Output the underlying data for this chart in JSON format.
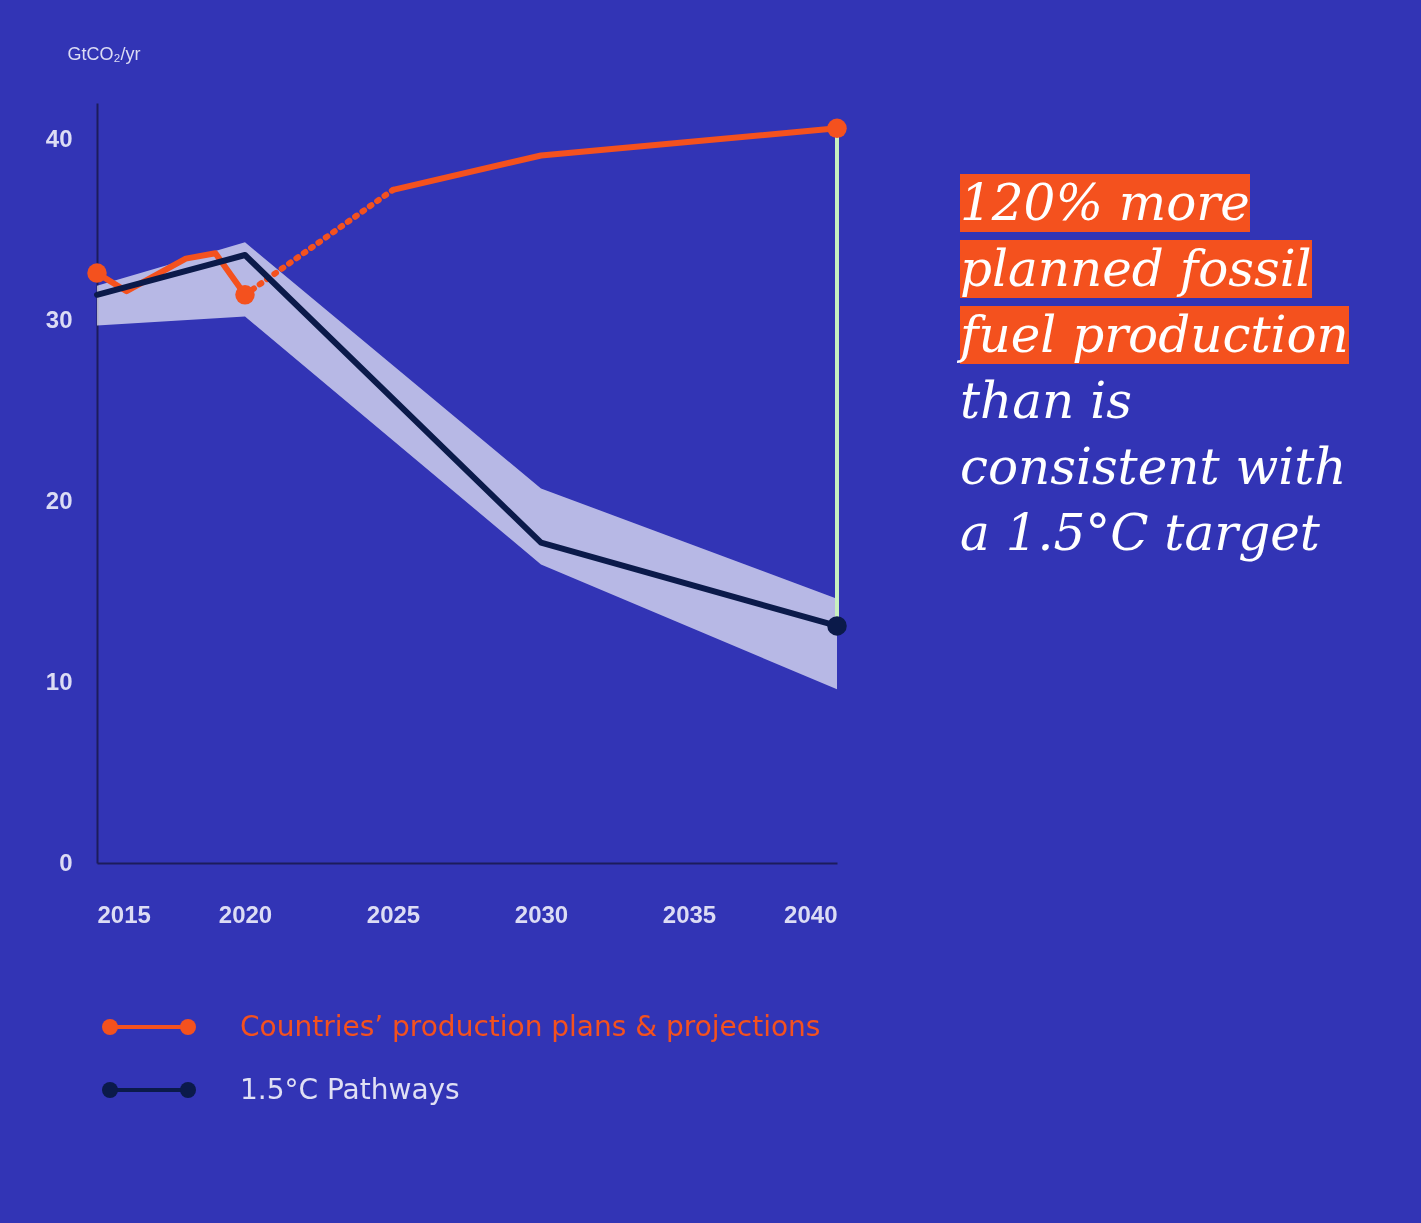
{
  "chart_data": {
    "type": "line",
    "ylabel": "GtCO₂/yr",
    "xlim": [
      2015,
      2040
    ],
    "xticks": [
      2015,
      2020,
      2025,
      2030,
      2035,
      2040
    ],
    "ylim": [
      0,
      42
    ],
    "yticks": [
      0,
      10,
      20,
      30,
      40
    ],
    "grid": false,
    "legend": "bottom",
    "series": [
      {
        "name": "Countries’ production plans & projections",
        "color": "#f4511e",
        "x": [
          2015,
          2016,
          2018,
          2019,
          2020
        ],
        "values": [
          32.6,
          31.6,
          33.4,
          33.7,
          31.4
        ]
      },
      {
        "color": "#f4511e",
        "line_style": "dotted",
        "x": [
          2020,
          2025
        ],
        "values": [
          31.4,
          37.2
        ]
      },
      {
        "color": "#f4511e",
        "x": [
          2025,
          2030,
          2040
        ],
        "values": [
          37.2,
          39.1,
          40.6
        ]
      },
      {
        "name": "1.5°C Pathways",
        "color": "#0b1a4a",
        "x": [
          2015,
          2020,
          2030,
          2040
        ],
        "values": [
          31.4,
          33.6,
          17.7,
          13.1
        ],
        "lower": [
          29.7,
          30.2,
          16.5,
          9.6
        ],
        "upper": [
          31.9,
          34.3,
          20.7,
          14.6
        ]
      },
      {
        "type": "scatter",
        "color": "#f4511e",
        "marker": "circle",
        "x": [
          2015,
          2020,
          2040
        ],
        "values": [
          32.6,
          31.4,
          40.6
        ]
      },
      {
        "type": "scatter",
        "color": "#0b1a4a",
        "marker": "circle",
        "x": [
          2040
        ],
        "values": [
          13.1
        ]
      }
    ],
    "annotations": [
      "120% more planned fossil fuel production",
      "than is consistent with a 1.5°C target"
    ]
  }
}
